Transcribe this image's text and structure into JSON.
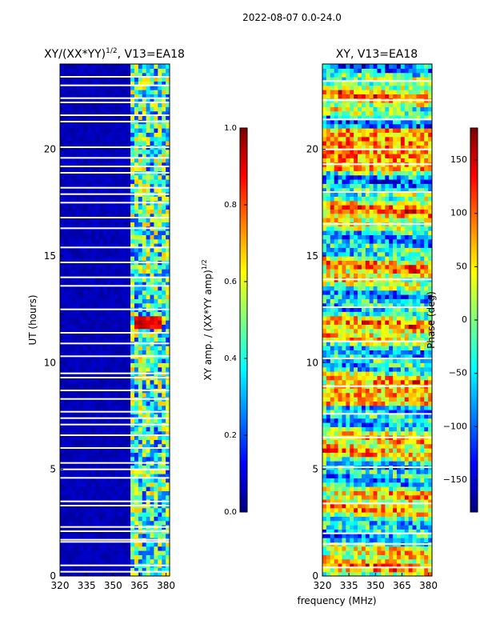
{
  "figure": {
    "suptitle": "2022-08-07 0.0-24.0",
    "xlabel": "frequency (MHz)"
  },
  "colors": {
    "jet": [
      "#00007f",
      "#0000ff",
      "#007fff",
      "#00ffff",
      "#7fff7f",
      "#ffff00",
      "#ff7f00",
      "#ff0000",
      "#7f0000"
    ],
    "axis": "#000000",
    "gap": "#ffffff"
  },
  "chart_data": [
    {
      "type": "heatmap",
      "title_prefix": "XY/(XX*YY)",
      "title_sup": "1/2",
      "title_suffix": ", V13=EA18",
      "xlabel": "",
      "ylabel": "UT (hours)",
      "xlim": [
        320,
        382
      ],
      "ylim": [
        0,
        24
      ],
      "xticks": [
        320,
        335,
        350,
        365,
        380
      ],
      "yticks": [
        0,
        5,
        10,
        15,
        20
      ],
      "colorbar": {
        "label_prefix": "XY amp. / (XX*YY amp)",
        "label_sup": "1/2",
        "range": [
          0.0,
          1.0
        ],
        "ticks": [
          "0.0",
          "0.2",
          "0.4",
          "0.6",
          "0.8",
          "1.0"
        ]
      },
      "data_gaps_hours": [
        0.2,
        0.5,
        1.6,
        1.7,
        2.1,
        2.3,
        3.3,
        3.5,
        4.6,
        5.0,
        5.3,
        6.0,
        6.6,
        7.1,
        7.4,
        7.7,
        8.3,
        8.7,
        9.3,
        9.5,
        10.3,
        10.9,
        11.4,
        12.5,
        13.6,
        14.0,
        14.7,
        15.4,
        16.3,
        16.8,
        17.5,
        17.9,
        18.2,
        18.9,
        19.2,
        19.6,
        20.1,
        21.3,
        21.6,
        22.2,
        22.4,
        23.0,
        23.4
      ],
      "notes": "low amplitude (~0.05) below 360 MHz; noisy 0.1-0.7 above 360 MHz; bright 0.8-1.0 patch near 11.8 UT"
    },
    {
      "type": "heatmap",
      "title": "XY, V13=EA18",
      "xlabel": "",
      "ylabel": "Phase (deg)",
      "xlim": [
        320,
        382
      ],
      "ylim": [
        0,
        24
      ],
      "xticks": [
        320,
        335,
        350,
        365,
        380
      ],
      "yticks": [
        0,
        5,
        10,
        15,
        20
      ],
      "colorbar": {
        "label": "Phase (deg)",
        "range": [
          -180,
          180
        ],
        "ticks": [
          "−150",
          "−100",
          "−50",
          "0",
          "50",
          "100",
          "150"
        ]
      },
      "data_gaps_hours": [
        0.4,
        1.5,
        2.0,
        3.4,
        5.1,
        6.5,
        7.6,
        8.9,
        10.2,
        11.0,
        12.6,
        13.9,
        16.5,
        18.0,
        19.3,
        20.0,
        21.4,
        22.3,
        23.2
      ],
      "notes": "phase mostly -100 to +150 deg with horizontal banding; red bands near 19-21 UT and 8-9 UT"
    }
  ]
}
